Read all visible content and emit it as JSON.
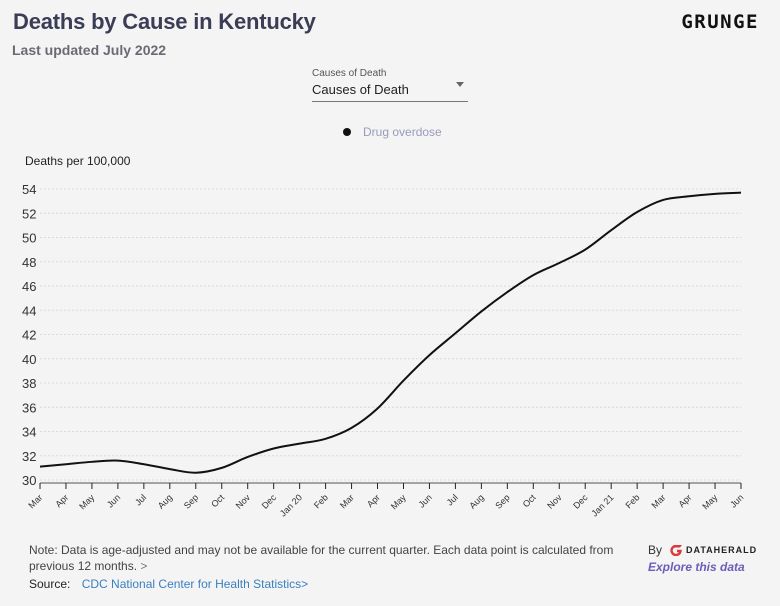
{
  "header": {
    "title": "Deaths by Cause in Kentucky",
    "subtitle": "Last updated July 2022",
    "brand": "GRUNGE"
  },
  "dropdown": {
    "label": "Causes of Death",
    "value": "Causes of Death"
  },
  "footer": {
    "note": "Note: Data is age-adjusted and may not be available for the current quarter. Each data point is calculated from previous 12 months.",
    "note_chevron": ">",
    "source_label": "Source:",
    "source_link": "CDC National Center for Health Statistics",
    "source_chevron": ">",
    "by_label": "By",
    "by_brand": "DATAHERALD",
    "explore_label": "Explore this data"
  },
  "colors": {
    "line": "#111111",
    "grid": "#d8d8e8",
    "title": "#3b3d56",
    "link": "#3a7fbf",
    "explore": "#6a5fb8",
    "logo": "#d93a3a"
  },
  "chart_data": {
    "type": "line",
    "title": "Deaths by Cause in Kentucky",
    "ylabel": "Deaths per 100,000",
    "xlabel": "",
    "ylim": [
      30,
      54
    ],
    "yticks": [
      30,
      32,
      34,
      36,
      38,
      40,
      42,
      44,
      46,
      48,
      50,
      52,
      54
    ],
    "grid": true,
    "legend_position": "top-center",
    "categories": [
      "Mar",
      "Apr",
      "May",
      "Jun",
      "Jul",
      "Aug",
      "Sep",
      "Oct",
      "Nov",
      "Dec",
      "Jan 20",
      "Feb",
      "Mar",
      "Apr",
      "May",
      "Jun",
      "Jul",
      "Aug",
      "Sep",
      "Oct",
      "Nov",
      "Dec",
      "Jan 21",
      "Feb",
      "Mar",
      "Apr",
      "May",
      "Jun"
    ],
    "series": [
      {
        "name": "Drug overdose",
        "values": [
          31.1,
          31.3,
          31.5,
          31.6,
          31.3,
          30.9,
          30.6,
          31.0,
          31.9,
          32.6,
          33.0,
          33.4,
          34.3,
          35.9,
          38.2,
          40.3,
          42.1,
          43.9,
          45.5,
          46.9,
          47.9,
          49.0,
          50.6,
          52.1,
          53.1,
          53.4,
          53.6,
          53.7
        ]
      }
    ]
  }
}
